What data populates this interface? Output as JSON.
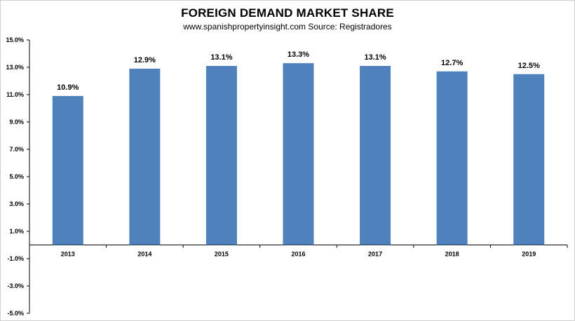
{
  "chart_data": {
    "type": "bar",
    "title": "FOREIGN DEMAND MARKET SHARE",
    "subtitle": "www.spanishpropertyinsight.com Source: Registradores",
    "categories": [
      "2013",
      "2014",
      "2015",
      "2016",
      "2017",
      "2018",
      "2019"
    ],
    "values": [
      10.9,
      12.9,
      13.1,
      13.3,
      13.1,
      12.7,
      12.5
    ],
    "data_labels": [
      "10.9%",
      "12.9%",
      "13.1%",
      "13.3%",
      "13.1%",
      "12.7%",
      "12.5%"
    ],
    "y_ticks": [
      15,
      13,
      11,
      9,
      7,
      5,
      3,
      1,
      -1,
      -3,
      -5
    ],
    "y_tick_labels": [
      "15.0%",
      "13.0%",
      "11.0%",
      "9.0%",
      "7.0%",
      "5.0%",
      "3.0%",
      "1.0%",
      "-1.0%",
      "-3.0%",
      "-5.0%"
    ],
    "ylim": [
      -5,
      15
    ],
    "xlabel": "",
    "ylabel": "",
    "grid": false,
    "bar_color": "#4f81bd"
  }
}
